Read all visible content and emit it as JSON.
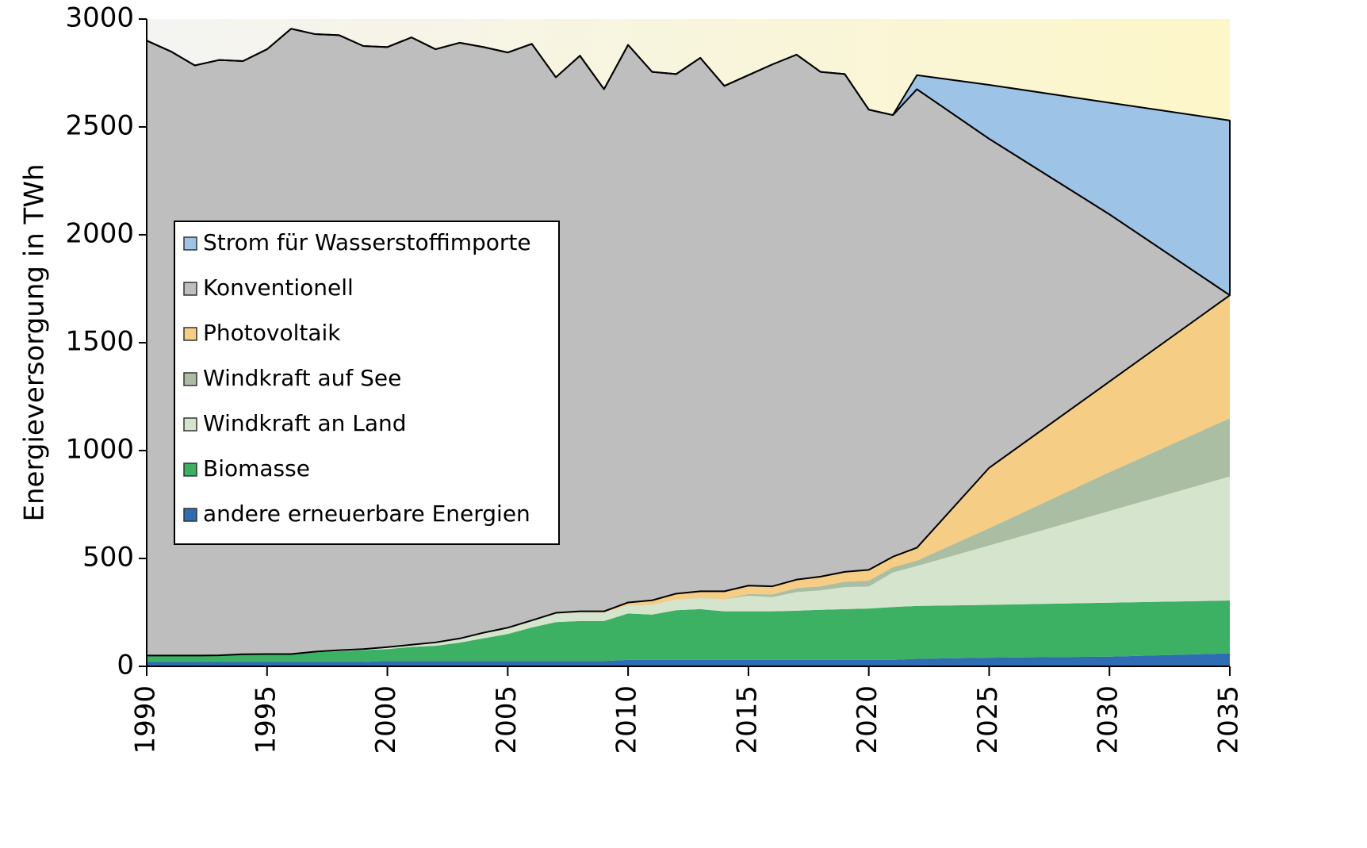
{
  "chart_data": {
    "type": "stacked_area",
    "y_label": "Energieversorgung in TWh",
    "x": [
      1990,
      1991,
      1992,
      1993,
      1994,
      1995,
      1996,
      1997,
      1998,
      1999,
      2000,
      2001,
      2002,
      2003,
      2004,
      2005,
      2006,
      2007,
      2008,
      2009,
      2010,
      2011,
      2012,
      2013,
      2014,
      2015,
      2016,
      2017,
      2018,
      2019,
      2020,
      2021,
      2022,
      2025,
      2030,
      2035
    ],
    "series": [
      {
        "name": "andere erneuerbare Energien",
        "color": "#2e6db4",
        "values": [
          20,
          20,
          20,
          20,
          20,
          20,
          20,
          20,
          20,
          20,
          25,
          25,
          25,
          25,
          25,
          25,
          25,
          25,
          25,
          25,
          30,
          30,
          30,
          30,
          30,
          30,
          30,
          30,
          30,
          30,
          30,
          30,
          35,
          40,
          45,
          60
        ]
      },
      {
        "name": "Biomasse",
        "color": "#3cb063",
        "values": [
          30,
          30,
          30,
          30,
          35,
          35,
          35,
          45,
          50,
          55,
          55,
          65,
          70,
          85,
          105,
          125,
          155,
          180,
          185,
          185,
          215,
          210,
          230,
          235,
          225,
          225,
          225,
          228,
          232,
          235,
          238,
          245,
          245,
          245,
          250,
          245
        ]
      },
      {
        "name": "Windkraft an Land",
        "color": "#d5e4cc",
        "values": [
          0,
          0,
          0,
          1,
          1,
          2,
          2,
          3,
          5,
          5,
          9,
          10,
          16,
          19,
          25,
          27,
          31,
          40,
          41,
          39,
          38,
          45,
          50,
          51,
          56,
          72,
          66,
          86,
          90,
          102,
          102,
          160,
          185,
          275,
          425,
          575
        ]
      },
      {
        "name": "Windkraft auf See",
        "color": "#a9bea3",
        "values": [
          0,
          0,
          0,
          0,
          0,
          0,
          0,
          0,
          0,
          0,
          0,
          0,
          0,
          0,
          0,
          0,
          0,
          0,
          0,
          0,
          1,
          1,
          1,
          1,
          1,
          8,
          12,
          18,
          19,
          25,
          27,
          24,
          25,
          80,
          180,
          270
        ]
      },
      {
        "name": "Photovoltaik",
        "color": "#f6cd84",
        "values": [
          0,
          0,
          0,
          0,
          0,
          0,
          0,
          0,
          0,
          0,
          0,
          0,
          0,
          0,
          1,
          2,
          2,
          3,
          4,
          6,
          12,
          20,
          26,
          31,
          36,
          39,
          38,
          40,
          45,
          46,
          50,
          49,
          60,
          280,
          420,
          570
        ]
      },
      {
        "name": "Konventionell",
        "color": "#bebebe",
        "values": [
          2850,
          2800,
          2735,
          2759,
          2749,
          2803,
          2898,
          2862,
          2850,
          2795,
          2781,
          2815,
          2749,
          2761,
          2714,
          2666,
          2672,
          2482,
          2575,
          2420,
          2584,
          2449,
          2408,
          2472,
          2342,
          2366,
          2419,
          2433,
          2339,
          2307,
          2133,
          2047,
          2125,
          1525,
          775,
          0
        ]
      },
      {
        "name": "Strom für Wasserstoffimporte",
        "color": "#9dc3e6",
        "values": [
          0,
          0,
          0,
          0,
          0,
          0,
          0,
          0,
          0,
          0,
          0,
          0,
          0,
          0,
          0,
          0,
          0,
          0,
          0,
          0,
          0,
          0,
          0,
          0,
          0,
          0,
          0,
          0,
          0,
          0,
          0,
          0,
          65,
          250,
          517,
          810
        ]
      }
    ],
    "xlim": [
      1990,
      2035
    ],
    "xticks": [
      1990,
      1995,
      2000,
      2005,
      2010,
      2015,
      2020,
      2025,
      2030,
      2035
    ],
    "ylim": [
      0,
      3000
    ],
    "yticks": [
      0,
      500,
      1000,
      1500,
      2000,
      2500,
      3000
    ],
    "legend": "left"
  }
}
